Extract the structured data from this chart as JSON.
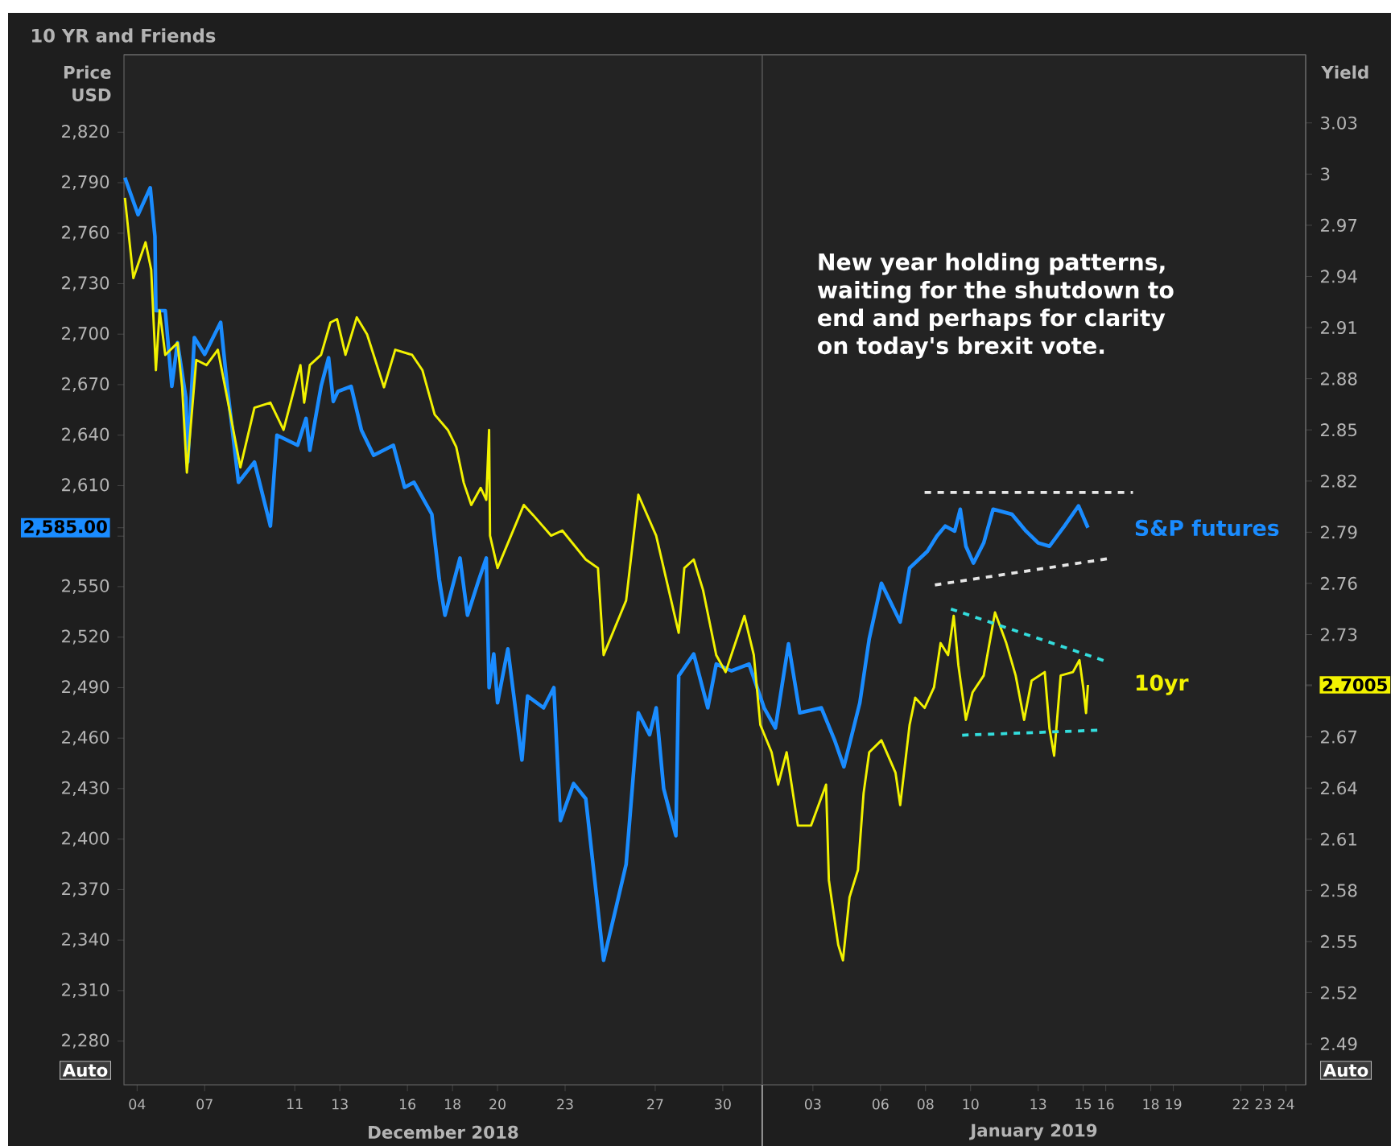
{
  "chart_data": {
    "type": "line",
    "title": "10 YR and Friends",
    "ylabel": "Price USD",
    "y2label": "Yield",
    "annotations": [
      "New year holding patterns, waiting for the shutdown to end and perhaps for clarity on today's brexit vote.",
      "December 2018",
      "January 2019",
      "Auto",
      "Auto"
    ],
    "xlim": [
      "2018-12-03T10:00",
      "2019-01-24T21:00"
    ],
    "xticks": [
      {
        "value": "2018-12-04",
        "label": "04"
      },
      {
        "value": "2018-12-07",
        "label": "07"
      },
      {
        "value": "2018-12-11",
        "label": "11"
      },
      {
        "value": "2018-12-13",
        "label": "13"
      },
      {
        "value": "2018-12-16",
        "label": "16"
      },
      {
        "value": "2018-12-18",
        "label": "18"
      },
      {
        "value": "2018-12-20",
        "label": "20"
      },
      {
        "value": "2018-12-23",
        "label": "23"
      },
      {
        "value": "2018-12-27",
        "label": "27"
      },
      {
        "value": "2018-12-30",
        "label": "30"
      },
      {
        "value": "2019-01-03",
        "label": "03"
      },
      {
        "value": "2019-01-06",
        "label": "06"
      },
      {
        "value": "2019-01-08",
        "label": "08"
      },
      {
        "value": "2019-01-10",
        "label": "10"
      },
      {
        "value": "2019-01-13",
        "label": "13"
      },
      {
        "value": "2019-01-15",
        "label": "15"
      },
      {
        "value": "2019-01-16",
        "label": "16"
      },
      {
        "value": "2019-01-18",
        "label": "18"
      },
      {
        "value": "2019-01-19",
        "label": "19"
      },
      {
        "value": "2019-01-22",
        "label": "22"
      },
      {
        "value": "2019-01-23",
        "label": "23"
      },
      {
        "value": "2019-01-24",
        "label": "24"
      }
    ],
    "ylim": [
      2254,
      2866
    ],
    "yticks": [
      {
        "value": 2280,
        "label": "2,280"
      },
      {
        "value": 2310,
        "label": "2,310"
      },
      {
        "value": 2340,
        "label": "2,340"
      },
      {
        "value": 2370,
        "label": "2,370"
      },
      {
        "value": 2400,
        "label": "2,400"
      },
      {
        "value": 2430,
        "label": "2,430"
      },
      {
        "value": 2460,
        "label": "2,460"
      },
      {
        "value": 2490,
        "label": "2,490"
      },
      {
        "value": 2520,
        "label": "2,520"
      },
      {
        "value": 2550,
        "label": "2,550"
      },
      {
        "value": 2580,
        "label": null
      },
      {
        "value": 2585,
        "label": "2,585.00"
      },
      {
        "value": 2610,
        "label": "2,610"
      },
      {
        "value": 2640,
        "label": "2,640"
      },
      {
        "value": 2670,
        "label": "2,670"
      },
      {
        "value": 2700,
        "label": "2,700"
      },
      {
        "value": 2730,
        "label": "2,730"
      },
      {
        "value": 2760,
        "label": "2,760"
      },
      {
        "value": 2790,
        "label": "2,790"
      },
      {
        "value": 2820,
        "label": "2,820"
      }
    ],
    "y2lim": [
      2.466,
      3.07
    ],
    "y2ticks": [
      2.49,
      2.52,
      2.55,
      2.58,
      2.61,
      2.64,
      2.67,
      {
        "value": 2.7,
        "label": null
      },
      {
        "value": 2.7005,
        "label": "2.7005"
      },
      2.73,
      2.76,
      2.79,
      2.82,
      2.85,
      2.88,
      2.91,
      2.94,
      2.97,
      3,
      3.03
    ],
    "ref_lines": [
      {
        "axis": "x",
        "value": "2018-12-31T18:00",
        "color": "#4a4a4a"
      }
    ],
    "series": [
      {
        "name": "S&P futures",
        "color": "#1a8cff",
        "x": [
          "2018-12-03T11:00",
          "2018-12-04T01:00",
          "2018-12-04T14:00",
          "2018-12-04T19:00",
          "2018-12-04T20:00",
          "2018-12-05T06:00",
          "2018-12-05T13:00",
          "2018-12-05T19:00",
          "2018-12-06T04:00",
          "2018-12-06T06:00",
          "2018-12-06T13:00",
          "2018-12-07T00:00",
          "2018-12-07T17:00",
          "2018-12-08T00:00",
          "2018-12-08T12:00",
          "2018-12-09T05:00",
          "2018-12-09T22:00",
          "2018-12-10T05:00",
          "2018-12-11T03:00",
          "2018-12-11T12:00",
          "2018-12-11T16:00",
          "2018-12-12T04:00",
          "2018-12-12T12:00",
          "2018-12-12T17:00",
          "2018-12-12T22:00",
          "2018-12-13T12:00",
          "2018-12-13T23:00",
          "2018-12-14T12:00",
          "2018-12-15T09:00",
          "2018-12-15T21:00",
          "2018-12-16T07:00",
          "2018-12-17T02:00",
          "2018-12-17T10:00",
          "2018-12-17T16:00",
          "2018-12-18T08:00",
          "2018-12-18T16:00",
          "2018-12-19T04:00",
          "2018-12-19T12:00",
          "2018-12-19T15:00",
          "2018-12-19T20:00",
          "2018-12-20T00:00",
          "2018-12-20T11:00",
          "2018-12-21T02:00",
          "2018-12-21T08:00",
          "2018-12-22T01:00",
          "2018-12-22T12:00",
          "2018-12-22T19:00",
          "2018-12-23T09:00",
          "2018-12-23T22:00",
          "2018-12-24T17:00",
          "2018-12-25T04:00",
          "2018-12-25T17:00",
          "2018-12-26T06:00",
          "2018-12-26T18:00",
          "2018-12-27T01:00",
          "2018-12-27T09:00",
          "2018-12-27T22:00",
          "2018-12-28T01:00",
          "2018-12-28T17:00",
          "2018-12-29T08:00",
          "2018-12-29T17:00",
          "2018-12-30T09:00",
          "2018-12-31T04:00",
          "2018-12-31T20:00",
          "2019-01-01T08:00",
          "2019-01-01T22:00",
          "2019-01-02T10:00",
          "2019-01-03T09:00",
          "2019-01-03T23:00",
          "2019-01-04T09:00",
          "2019-01-05T02:00",
          "2019-01-05T12:00",
          "2019-01-06T01:00",
          "2019-01-06T21:00",
          "2019-01-07T07:00",
          "2019-01-08T02:00",
          "2019-01-08T12:00",
          "2019-01-08T21:00",
          "2019-01-09T07:00",
          "2019-01-09T13:00",
          "2019-01-09T19:00",
          "2019-01-10T03:00",
          "2019-01-10T14:00",
          "2019-01-11T00:00",
          "2019-01-11T20:00",
          "2019-01-12T11:00",
          "2019-01-13T00:00",
          "2019-01-13T12:00",
          "2019-01-14T04:00",
          "2019-01-14T19:00",
          "2019-01-15T05:00"
        ],
        "values": [
          2793,
          2771,
          2787,
          2758,
          2714,
          2714,
          2669,
          2695,
          2662,
          2624,
          2698,
          2688,
          2707,
          2669,
          2612,
          2624,
          2586,
          2640,
          2634,
          2650,
          2631,
          2669,
          2686,
          2660,
          2666,
          2669,
          2643,
          2628,
          2634,
          2609,
          2612,
          2593,
          2554,
          2533,
          2567,
          2533,
          2554,
          2567,
          2490,
          2510,
          2481,
          2513,
          2447,
          2485,
          2478,
          2490,
          2411,
          2433,
          2424,
          2328,
          2354,
          2385,
          2475,
          2462,
          2478,
          2430,
          2402,
          2497,
          2510,
          2478,
          2504,
          2500,
          2504,
          2478,
          2466,
          2516,
          2475,
          2478,
          2459,
          2443,
          2481,
          2519,
          2552,
          2529,
          2561,
          2571,
          2580,
          2586,
          2583,
          2596,
          2574,
          2564,
          2576,
          2596,
          2593,
          2583,
          2576,
          2574,
          2586,
          2598,
          2585
        ]
      },
      {
        "name": "10yr",
        "color": "#f2f200",
        "axis": "y2",
        "x": [
          "2018-12-03T11:00",
          "2018-12-03T20:00",
          "2018-12-04T09:00",
          "2018-12-04T15:00",
          "2018-12-04T20:00",
          "2018-12-05T00:00",
          "2018-12-05T06:00",
          "2018-12-05T19:00",
          "2018-12-06T00:00",
          "2018-12-06T05:00",
          "2018-12-06T15:00",
          "2018-12-07T02:00",
          "2018-12-07T14:00",
          "2018-12-08T02:00",
          "2018-12-08T14:00",
          "2018-12-09T05:00",
          "2018-12-09T22:00",
          "2018-12-10T12:00",
          "2018-12-11T06:00",
          "2018-12-11T10:00",
          "2018-12-11T16:00",
          "2018-12-12T04:00",
          "2018-12-12T14:00",
          "2018-12-12T21:00",
          "2018-12-13T06:00",
          "2018-12-13T18:00",
          "2018-12-14T05:00",
          "2018-12-14T23:00",
          "2018-12-15T11:00",
          "2018-12-16T05:00",
          "2018-12-16T16:00",
          "2018-12-17T05:00",
          "2018-12-17T19:00",
          "2018-12-18T04:00",
          "2018-12-18T12:00",
          "2018-12-18T20:00",
          "2018-12-19T06:00",
          "2018-12-19T12:00",
          "2018-12-19T15:00",
          "2018-12-19T16:00",
          "2018-12-20T00:00",
          "2018-12-21T04:00",
          "2018-12-21T14:00",
          "2018-12-22T09:00",
          "2018-12-22T21:00",
          "2018-12-23T22:00",
          "2018-12-24T11:00",
          "2018-12-24T17:00",
          "2018-12-25T17:00",
          "2018-12-26T06:00",
          "2018-12-27T01:00",
          "2018-12-28T01:00",
          "2018-12-28T07:00",
          "2018-12-28T17:00",
          "2018-12-29T03:00",
          "2018-12-29T17:00",
          "2018-12-30T03:00",
          "2018-12-30T23:00",
          "2018-12-31T09:00",
          "2018-12-31T16:00",
          "2019-01-01T04:00",
          "2019-01-01T11:00",
          "2019-01-01T20:00",
          "2019-01-02T08:00",
          "2019-01-02T22:00",
          "2019-01-03T14:00",
          "2019-01-03T17:00",
          "2019-01-04T03:00",
          "2019-01-04T08:00",
          "2019-01-04T15:00",
          "2019-01-05T00:00",
          "2019-01-05T06:00",
          "2019-01-05T12:00",
          "2019-01-06T01:00",
          "2019-01-06T16:00",
          "2019-01-06T21:00",
          "2019-01-07T07:00",
          "2019-01-07T13:00",
          "2019-01-07T23:00",
          "2019-01-08T09:00",
          "2019-01-08T16:00",
          "2019-01-09T00:00",
          "2019-01-09T06:00",
          "2019-01-09T11:00",
          "2019-01-09T19:00",
          "2019-01-10T02:00",
          "2019-01-10T14:00",
          "2019-01-11T02:00",
          "2019-01-11T14:00",
          "2019-01-12T00:00",
          "2019-01-12T09:00",
          "2019-01-12T17:00",
          "2019-01-13T07:00",
          "2019-01-13T12:00",
          "2019-01-13T17:00",
          "2019-01-14T00:00",
          "2019-01-14T13:00",
          "2019-01-14T20:00",
          "2019-01-15T00:00",
          "2019-01-15T03:00",
          "2019-01-15T05:00"
        ],
        "values": [
          2.986,
          2.939,
          2.96,
          2.944,
          2.885,
          2.92,
          2.894,
          2.901,
          2.875,
          2.825,
          2.891,
          2.888,
          2.897,
          2.863,
          2.828,
          2.863,
          2.866,
          2.85,
          2.888,
          2.866,
          2.888,
          2.894,
          2.913,
          2.915,
          2.894,
          2.916,
          2.906,
          2.875,
          2.897,
          2.894,
          2.885,
          2.859,
          2.85,
          2.84,
          2.819,
          2.806,
          2.816,
          2.809,
          2.85,
          2.788,
          2.769,
          2.806,
          2.8,
          2.788,
          2.791,
          2.774,
          2.769,
          2.718,
          2.75,
          2.812,
          2.788,
          2.731,
          2.769,
          2.774,
          2.756,
          2.718,
          2.708,
          2.741,
          2.718,
          2.677,
          2.661,
          2.642,
          2.661,
          2.618,
          2.618,
          2.642,
          2.586,
          2.548,
          2.539,
          2.576,
          2.592,
          2.637,
          2.661,
          2.668,
          2.649,
          2.63,
          2.677,
          2.693,
          2.687,
          2.699,
          2.725,
          2.718,
          2.741,
          2.712,
          2.68,
          2.696,
          2.706,
          2.743,
          2.725,
          2.706,
          2.68,
          2.703,
          2.708,
          2.675,
          2.659,
          2.706,
          2.708,
          2.715,
          2.699,
          2.684,
          2.7005
        ]
      },
      {
        "type": "line",
        "line_style": "dashed",
        "color": "#e6e6e6",
        "x": [
          "2019-01-07T23:00",
          "2019-01-17T05:00"
        ],
        "values": [
          2606,
          2606
        ]
      },
      {
        "type": "line",
        "line_style": "dashed",
        "color": "#e6e6e6",
        "x": [
          "2019-01-08T10:00",
          "2019-01-16T07:00"
        ],
        "values": [
          2551,
          2567
        ]
      },
      {
        "type": "line",
        "line_style": "dashed",
        "color": "#33dddd",
        "axis": "y2",
        "x": [
          "2019-01-09T03:00",
          "2019-01-16T02:00"
        ],
        "values": [
          2.745,
          2.714
        ]
      },
      {
        "type": "line",
        "line_style": "dashed",
        "color": "#33dddd",
        "axis": "y2",
        "x": [
          "2019-01-09T15:00",
          "2019-01-15T20:00"
        ],
        "values": [
          2.671,
          2.674
        ]
      }
    ]
  }
}
